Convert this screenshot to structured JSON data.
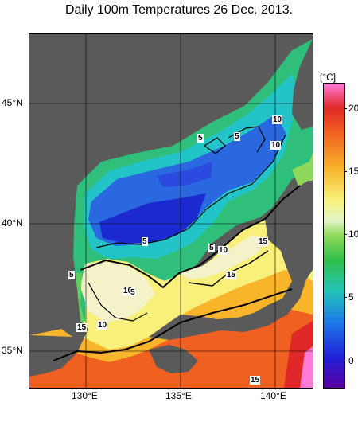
{
  "title": "Daily 100m Temperatures 26 Dec. 2013.",
  "lat_labels": [
    "45°N",
    "40°N",
    "35°N"
  ],
  "lon_labels": [
    "130°E",
    "135°E",
    "140°E"
  ],
  "colorbar": {
    "unit": "[°C]",
    "ticks": [
      "20",
      "15",
      "10",
      "5",
      "0"
    ],
    "min": -2,
    "max": 22,
    "colors": [
      "#5a00a0",
      "#2020d8",
      "#1e7ee8",
      "#23c4b5",
      "#2fbf4a",
      "#8ed85a",
      "#e4f6c8",
      "#f8f07a",
      "#f8b42a",
      "#f06020",
      "#e02828",
      "#ff7ad8"
    ]
  },
  "contour_labels": [
    "5",
    "5",
    "10",
    "10",
    "5",
    "5",
    "10",
    "15",
    "15",
    "5",
    "10",
    "5",
    "15",
    "10",
    "15"
  ],
  "colors": {
    "land": "#5a5a5a",
    "land_mask": "#c8c8c8",
    "coast_line": "#000000"
  }
}
